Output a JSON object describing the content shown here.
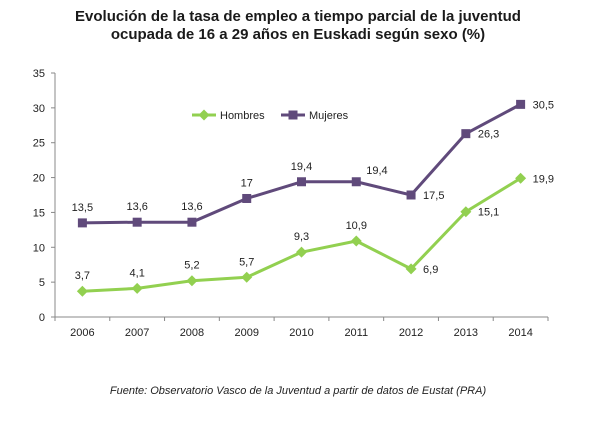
{
  "title_line1": "Evolución de la tasa de empleo a tiempo parcial de la juventud",
  "title_line2": "ocupada de 16 a 29 años en Euskadi según sexo (%)",
  "source": "Fuente: Observatorio Vasco de la Juventud a partir de datos de Eustat (PRA)",
  "chart_data": {
    "type": "line",
    "categories": [
      "2006",
      "2007",
      "2008",
      "2009",
      "2010",
      "2011",
      "2012",
      "2013",
      "2014"
    ],
    "ylim": [
      0,
      35
    ],
    "yticks": [
      "0",
      "5",
      "10",
      "15",
      "20",
      "25",
      "30",
      "35"
    ],
    "grid": false,
    "legend_position": "top-center",
    "series": [
      {
        "name": "Hombres",
        "color": "#92d050",
        "marker": "diamond",
        "values": [
          3.7,
          4.1,
          5.2,
          5.7,
          9.3,
          10.9,
          6.9,
          15.1,
          19.9
        ],
        "labels": [
          "3,7",
          "4,1",
          "5,2",
          "5,7",
          "9,3",
          "10,9",
          "6,9",
          "15,1",
          "19,9"
        ]
      },
      {
        "name": "Mujeres",
        "color": "#604a7b",
        "marker": "square",
        "values": [
          13.5,
          13.6,
          13.6,
          17,
          19.4,
          19.4,
          17.5,
          26.3,
          30.5
        ],
        "labels": [
          "13,5",
          "13,6",
          "13,6",
          "17",
          "19,4",
          "19,4",
          "17,5",
          "26,3",
          "30,5"
        ]
      }
    ]
  }
}
